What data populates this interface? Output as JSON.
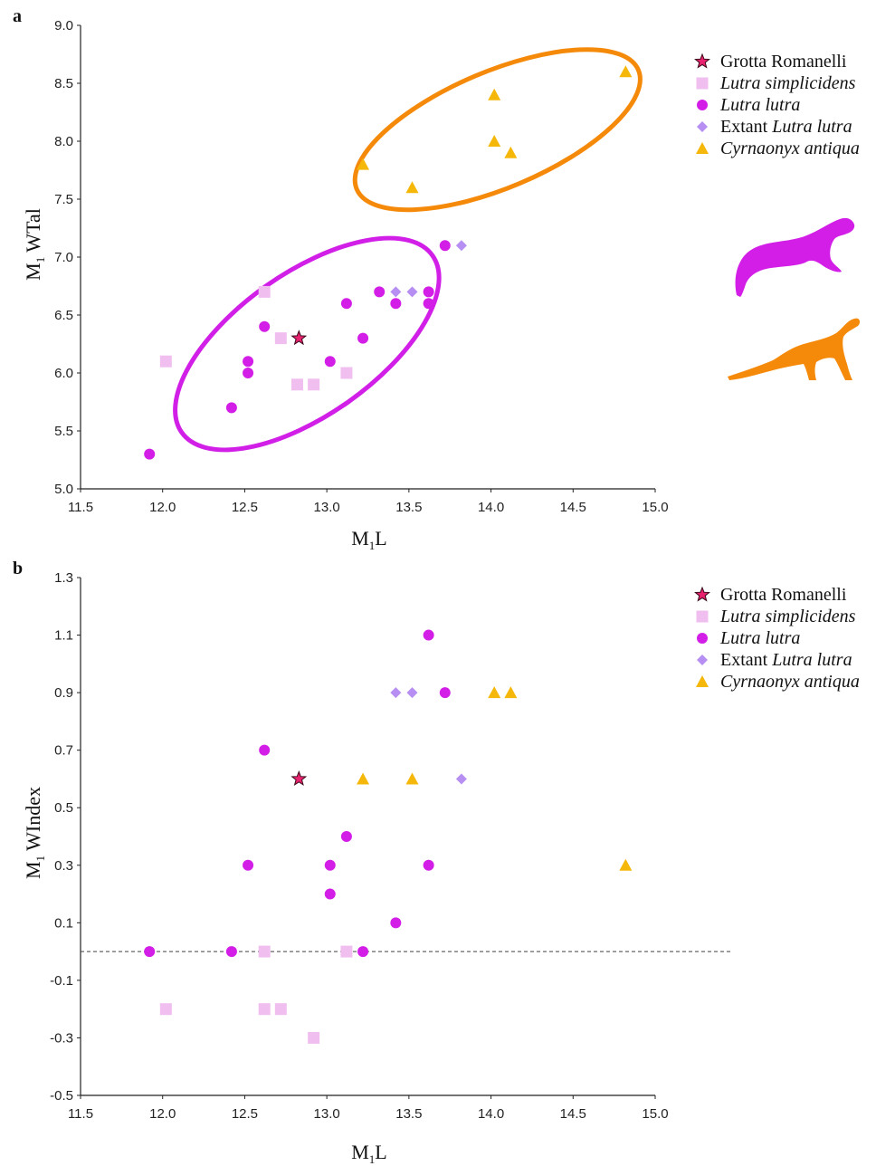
{
  "colors": {
    "grotta": "#e8226f",
    "grotta_stroke": "#3a0a1a",
    "simplicidens": "#f0bff0",
    "lutra": "#d21ee6",
    "extant": "#b78ef2",
    "cyrnaonyx": "#f5b80a",
    "lutra_ellipse": "#d11fe8",
    "cyrnaonyx_ellipse": "#f58a0a"
  },
  "legend": [
    {
      "key": "grotta",
      "shape": "star",
      "parts": [
        {
          "text": "Grotta Romanelli",
          "italic": false
        }
      ]
    },
    {
      "key": "simplicidens",
      "shape": "square",
      "parts": [
        {
          "text": "Lutra simplicidens",
          "italic": true
        }
      ]
    },
    {
      "key": "lutra",
      "shape": "circle",
      "parts": [
        {
          "text": "Lutra lutra",
          "italic": true
        }
      ]
    },
    {
      "key": "extant",
      "shape": "diamond",
      "parts": [
        {
          "text": "Extant ",
          "italic": false
        },
        {
          "text": "Lutra lutra",
          "italic": true
        }
      ]
    },
    {
      "key": "cyrnaonyx",
      "shape": "triangle",
      "parts": [
        {
          "text": "Cyrnaonyx antiqua",
          "italic": true
        }
      ]
    }
  ],
  "silhouettes": [
    {
      "name": "otter-silhouette-icon",
      "color": "#d21ee6"
    },
    {
      "name": "cyrnaonyx-silhouette-icon",
      "color": "#f58a0a"
    }
  ],
  "chart_data": [
    {
      "panel": "a",
      "type": "scatter",
      "xlabel": "M1L",
      "ylabel": "M1WTal",
      "xlim": [
        11.5,
        15.0
      ],
      "ylim": [
        5.0,
        9.0
      ],
      "xticks": [
        "11.5",
        "12.0",
        "12.5",
        "13.0",
        "13.5",
        "14.0",
        "14.5",
        "15.0"
      ],
      "yticks": [
        "5.0",
        "5.5",
        "6.0",
        "6.5",
        "7.0",
        "7.5",
        "8.0",
        "8.5",
        "9.0"
      ],
      "series": [
        {
          "name": "Grotta Romanelli",
          "key": "grotta",
          "shape": "star",
          "points": [
            [
              12.83,
              6.3
            ]
          ]
        },
        {
          "name": "Lutra simplicidens",
          "key": "simplicidens",
          "shape": "square",
          "points": [
            [
              12.02,
              6.1
            ],
            [
              12.62,
              6.7
            ],
            [
              12.72,
              6.3
            ],
            [
              12.82,
              5.9
            ],
            [
              12.92,
              5.9
            ],
            [
              13.12,
              6.0
            ]
          ]
        },
        {
          "name": "Lutra lutra",
          "key": "lutra",
          "shape": "circle",
          "points": [
            [
              11.92,
              5.3
            ],
            [
              12.42,
              5.7
            ],
            [
              12.52,
              6.0
            ],
            [
              12.52,
              6.1
            ],
            [
              12.62,
              6.4
            ],
            [
              13.02,
              6.1
            ],
            [
              13.12,
              6.6
            ],
            [
              13.22,
              6.3
            ],
            [
              13.32,
              6.7
            ],
            [
              13.42,
              6.6
            ],
            [
              13.62,
              6.7
            ],
            [
              13.62,
              6.6
            ],
            [
              13.72,
              7.1
            ]
          ]
        },
        {
          "name": "Extant Lutra lutra",
          "key": "extant",
          "shape": "diamond",
          "points": [
            [
              13.42,
              6.7
            ],
            [
              13.52,
              6.7
            ],
            [
              13.82,
              7.1
            ]
          ]
        },
        {
          "name": "Cyrnaonyx antiqua",
          "key": "cyrnaonyx",
          "shape": "triangle",
          "points": [
            [
              13.22,
              7.8
            ],
            [
              13.52,
              7.6
            ],
            [
              14.02,
              8.0
            ],
            [
              14.02,
              8.4
            ],
            [
              14.12,
              7.9
            ],
            [
              14.82,
              8.6
            ]
          ]
        }
      ],
      "ellipses": [
        {
          "key": "lutra_ellipse",
          "cx": 12.88,
          "cy": 6.25,
          "rx": 1.08,
          "ry": 0.5,
          "angle_data": [
            1.0,
            1.0
          ]
        },
        {
          "key": "cyrnaonyx_ellipse",
          "cx": 14.04,
          "cy": 8.1,
          "rx": 1.0,
          "ry": 0.38,
          "angle_data": [
            1.0,
            0.6
          ]
        }
      ]
    },
    {
      "panel": "b",
      "type": "scatter",
      "xlabel": "M1L",
      "ylabel": "M1WIndex",
      "xlim": [
        11.5,
        15.0
      ],
      "ylim": [
        -0.5,
        1.3
      ],
      "xticks": [
        "11.5",
        "12.0",
        "12.5",
        "13.0",
        "13.5",
        "14.0",
        "14.5",
        "15.0"
      ],
      "yticks": [
        "-0.5",
        "-0.3",
        "-0.1",
        "0.1",
        "0.3",
        "0.5",
        "0.7",
        "0.9",
        "1.1",
        "1.3"
      ],
      "reference_line_y": 0.0,
      "series": [
        {
          "name": "Grotta Romanelli",
          "key": "grotta",
          "shape": "star",
          "points": [
            [
              12.83,
              0.6
            ]
          ]
        },
        {
          "name": "Lutra simplicidens",
          "key": "simplicidens",
          "shape": "square",
          "points": [
            [
              12.02,
              -0.2
            ],
            [
              12.62,
              0.0
            ],
            [
              12.62,
              -0.2
            ],
            [
              12.72,
              -0.2
            ],
            [
              12.92,
              -0.3
            ],
            [
              13.12,
              0.0
            ]
          ]
        },
        {
          "name": "Lutra lutra",
          "key": "lutra",
          "shape": "circle",
          "points": [
            [
              11.92,
              0.0
            ],
            [
              12.42,
              0.0
            ],
            [
              12.52,
              0.3
            ],
            [
              12.62,
              0.7
            ],
            [
              13.02,
              0.3
            ],
            [
              13.02,
              0.2
            ],
            [
              13.12,
              0.4
            ],
            [
              13.22,
              0.0
            ],
            [
              13.42,
              0.1
            ],
            [
              13.62,
              1.1
            ],
            [
              13.62,
              0.3
            ],
            [
              13.72,
              0.9
            ]
          ]
        },
        {
          "name": "Extant Lutra lutra",
          "key": "extant",
          "shape": "diamond",
          "points": [
            [
              13.42,
              0.9
            ],
            [
              13.52,
              0.9
            ],
            [
              13.82,
              0.6
            ]
          ]
        },
        {
          "name": "Cyrnaonyx antiqua",
          "key": "cyrnaonyx",
          "shape": "triangle",
          "points": [
            [
              13.22,
              0.6
            ],
            [
              13.52,
              0.6
            ],
            [
              14.02,
              0.9
            ],
            [
              14.12,
              0.9
            ],
            [
              14.82,
              0.3
            ]
          ]
        }
      ]
    }
  ]
}
